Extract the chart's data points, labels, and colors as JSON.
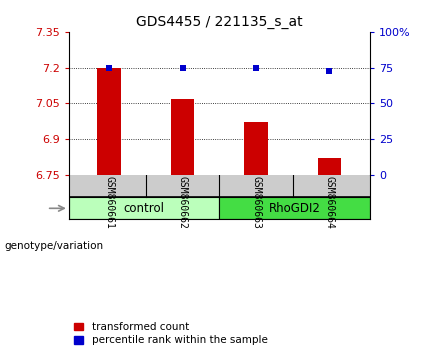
{
  "title": "GDS4455 / 221135_s_at",
  "samples": [
    "GSM860661",
    "GSM860662",
    "GSM860663",
    "GSM860664"
  ],
  "bar_values": [
    7.2,
    7.07,
    6.97,
    6.82
  ],
  "marker_values": [
    7.2,
    7.2,
    7.2,
    7.185
  ],
  "ylim": [
    6.75,
    7.35
  ],
  "yticks_left": [
    6.75,
    6.9,
    7.05,
    7.2,
    7.35
  ],
  "yticks_right": [
    0,
    25,
    50,
    75,
    100
  ],
  "right_ylim": [
    0,
    100
  ],
  "bar_color": "#cc0000",
  "marker_color": "#0000cc",
  "bar_width": 0.32,
  "groups": [
    {
      "label": "control",
      "color": "#bbffbb"
    },
    {
      "label": "RhoGDI2",
      "color": "#44dd44"
    }
  ],
  "genotype_label": "genotype/variation",
  "legend_items": [
    {
      "label": "transformed count",
      "color": "#cc0000"
    },
    {
      "label": "percentile rank within the sample",
      "color": "#0000cc"
    }
  ],
  "background_color": "#ffffff",
  "plot_bg": "#ffffff",
  "sample_bg": "#cccccc",
  "title_fontsize": 10,
  "tick_fontsize": 8,
  "legend_fontsize": 7.5
}
